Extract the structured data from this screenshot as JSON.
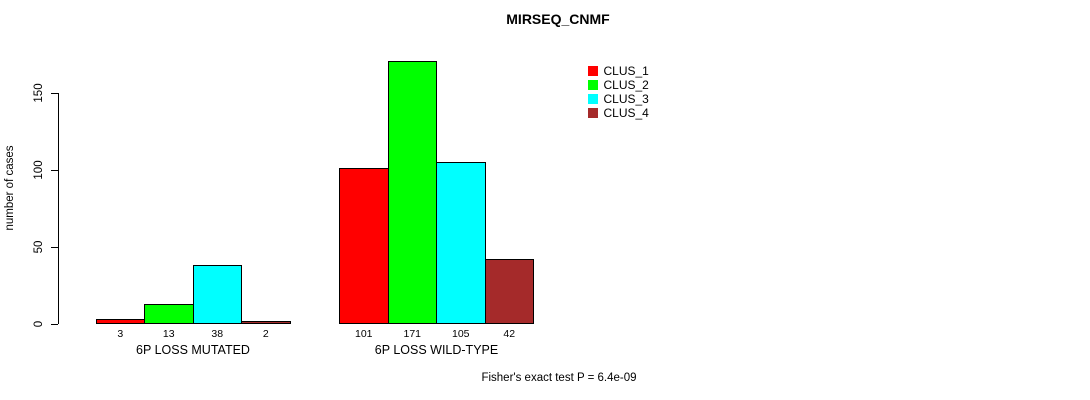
{
  "chart_data": {
    "type": "bar",
    "title": "MIRSEQ_CNMF",
    "ylabel": "number of cases",
    "xlabel": "",
    "ylim": [
      0,
      175
    ],
    "yticks": [
      0,
      50,
      100,
      150
    ],
    "y_tick_label_rotation": 90,
    "grid": false,
    "legend_position": "top-right-inside",
    "categories": [
      "6P LOSS MUTATED",
      "6P LOSS WILD-TYPE"
    ],
    "series": [
      {
        "name": "CLUS_1",
        "color": "#FF0000",
        "values": [
          3,
          101
        ]
      },
      {
        "name": "CLUS_2",
        "color": "#00FF00",
        "values": [
          13,
          171
        ]
      },
      {
        "name": "CLUS_3",
        "color": "#00FFFF",
        "values": [
          38,
          105
        ]
      },
      {
        "name": "CLUS_4",
        "color": "#A52A2A",
        "values": [
          2,
          42
        ]
      }
    ],
    "bar_value_labels": [
      [
        "3",
        "13",
        "38",
        "2"
      ],
      [
        "101",
        "171",
        "105",
        "42"
      ]
    ],
    "bar_border_color": "#000000",
    "annotation": "Fisher's exact test P = 6.4e-09",
    "background_color": "#FFFFFF",
    "text_color": "#000000"
  }
}
